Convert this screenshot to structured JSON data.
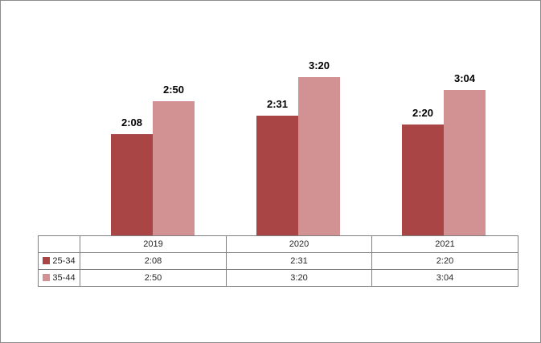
{
  "chart_data": {
    "type": "bar",
    "title": "",
    "xlabel": "",
    "ylabel": "",
    "categories": [
      "2019",
      "2020",
      "2021"
    ],
    "series": [
      {
        "name": "25-34",
        "color": "#A94545",
        "values": [
          "2:08",
          "2:31",
          "2:20"
        ]
      },
      {
        "name": "35-44",
        "color": "#D29192",
        "values": [
          "2:50",
          "3:20",
          "3:04"
        ]
      }
    ],
    "value_format": "h:mm",
    "data_labels_shown": true,
    "gridlines": false,
    "axes_shown": false,
    "legend_position": "data-table-left-column",
    "data_table_shown": true
  },
  "colors": {
    "series_dark": "#A94545",
    "series_light": "#D29192",
    "table_border": "#808080",
    "canvas_border": "#8c8c8c",
    "data_label_text": "#000000",
    "table_text": "#262626"
  }
}
